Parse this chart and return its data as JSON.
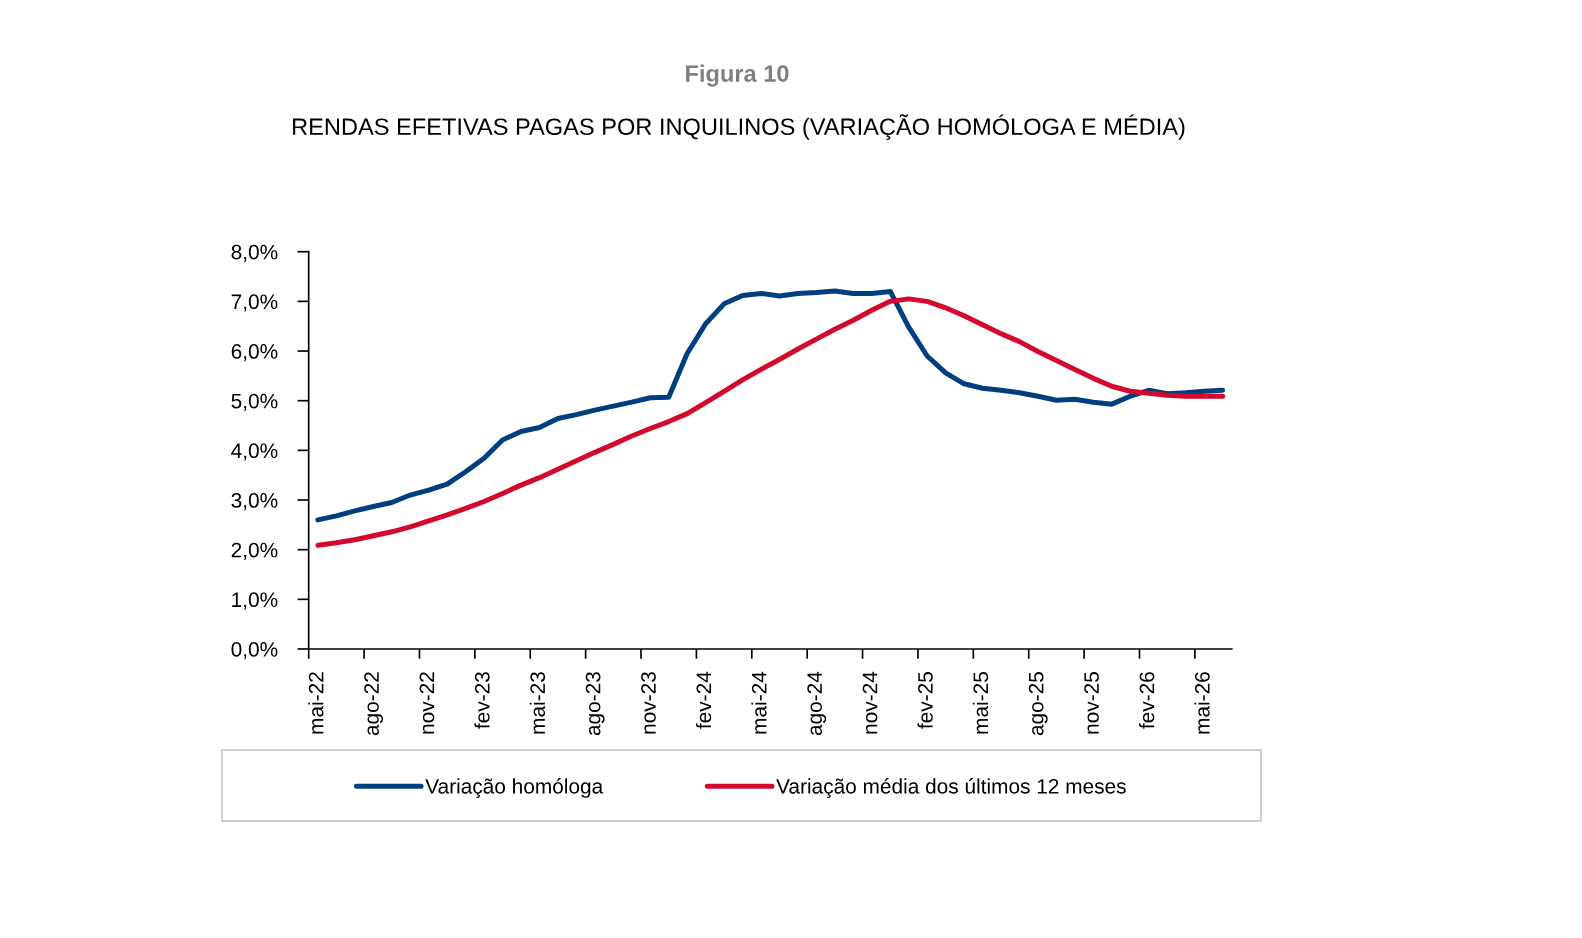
{
  "chart_data": {
    "type": "line",
    "title": "Figura 10",
    "subtitle": "RENDAS EFETIVAS PAGAS POR INQUILINOS (VARIAÇÃO HOMÓLOGA E MÉDIA)",
    "categories": [
      "mai-22",
      null,
      null,
      "ago-22",
      null,
      null,
      "nov-22",
      null,
      null,
      "fev-23",
      null,
      null,
      "mai-23",
      null,
      null,
      "ago-23",
      null,
      null,
      "nov-23",
      null,
      null,
      "fev-24",
      null,
      null,
      "mai-24",
      null,
      null,
      "ago-24",
      null,
      null,
      "nov-24",
      null,
      null,
      "fev-25",
      null,
      null,
      "mai-25",
      null,
      null,
      "ago-25",
      null,
      null,
      "nov-25",
      null,
      null,
      "fev-26",
      null,
      null,
      "mai-26",
      null
    ],
    "series": [
      {
        "name": "Variação homóloga",
        "color": "#003f7f",
        "values": [
          2.6,
          2.68,
          2.78,
          2.87,
          2.95,
          3.1,
          3.2,
          3.32,
          3.57,
          3.84,
          4.21,
          4.38,
          4.46,
          4.64,
          4.72,
          4.81,
          4.89,
          4.97,
          5.06,
          5.07,
          5.95,
          6.55,
          6.95,
          7.12,
          7.16,
          7.11,
          7.16,
          7.18,
          7.21,
          7.16,
          7.16,
          7.2,
          6.48,
          5.9,
          5.56,
          5.34,
          5.25,
          5.21,
          5.16,
          5.09,
          5.01,
          5.03,
          4.97,
          4.93,
          5.09,
          5.21,
          5.14,
          5.16,
          5.19,
          5.21
        ]
      },
      {
        "name": "Variação média dos últimos 12 meses",
        "color": "#d4082c",
        "values": [
          2.09,
          2.14,
          2.2,
          2.28,
          2.36,
          2.46,
          2.58,
          2.7,
          2.83,
          2.97,
          3.13,
          3.3,
          3.45,
          3.62,
          3.79,
          3.96,
          4.12,
          4.29,
          4.44,
          4.58,
          4.74,
          4.96,
          5.19,
          5.42,
          5.63,
          5.83,
          6.04,
          6.24,
          6.44,
          6.62,
          6.82,
          7.0,
          7.05,
          7.0,
          6.87,
          6.71,
          6.53,
          6.35,
          6.19,
          5.99,
          5.81,
          5.63,
          5.45,
          5.29,
          5.19,
          5.15,
          5.11,
          5.09,
          5.09,
          5.09
        ]
      }
    ],
    "ylim": [
      0,
      8
    ],
    "yticks": [
      {
        "value": 0,
        "label": "0,0%"
      },
      {
        "value": 1,
        "label": "1,0%"
      },
      {
        "value": 2,
        "label": "2,0%"
      },
      {
        "value": 3,
        "label": "3,0%"
      },
      {
        "value": 4,
        "label": "4,0%"
      },
      {
        "value": 5,
        "label": "5,0%"
      },
      {
        "value": 6,
        "label": "6,0%"
      },
      {
        "value": 7,
        "label": "7,0%"
      },
      {
        "value": 8,
        "label": "8,0%"
      }
    ],
    "grid": false,
    "legend": "bottom",
    "marker": "none",
    "line_style": "solid"
  }
}
